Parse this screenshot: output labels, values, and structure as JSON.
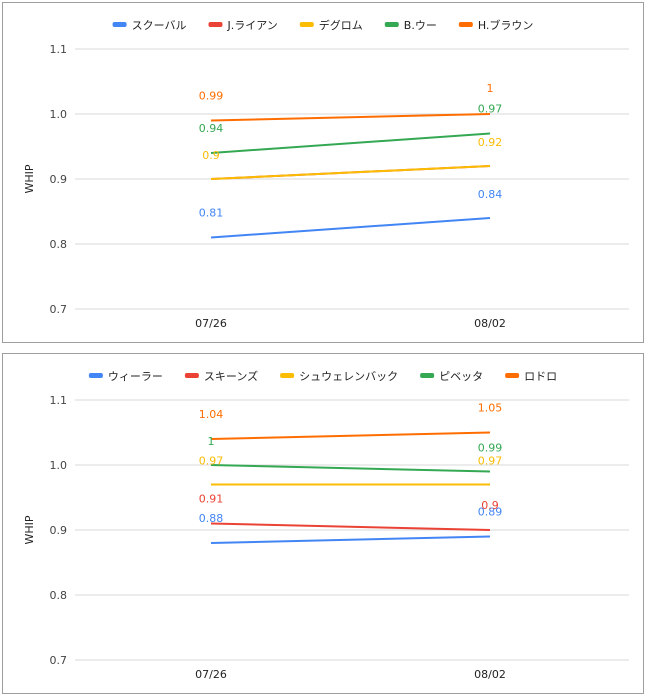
{
  "chart_data": [
    {
      "type": "line",
      "title": "",
      "xlabel": "",
      "ylabel": "WHIP",
      "categories": [
        "07/26",
        "08/02"
      ],
      "ylim": [
        0.7,
        1.1
      ],
      "yticks": [
        "0.7",
        "0.8",
        "0.9",
        "1.0",
        "1.1"
      ],
      "grid": true,
      "legend_position": "top",
      "series": [
        {
          "name": "スクーバル",
          "color": "#4285f4",
          "values": [
            0.81,
            0.84
          ],
          "labels": [
            "0.81",
            "0.84"
          ]
        },
        {
          "name": "J.ライアン",
          "color": "#ea4335",
          "values": [
            0.9,
            0.92
          ],
          "labels": [
            "",
            ""
          ]
        },
        {
          "name": "デグロム",
          "color": "#fbbc04",
          "values": [
            0.9,
            0.92
          ],
          "labels": [
            "0.9",
            "0.92"
          ]
        },
        {
          "name": "B.ウー",
          "color": "#34a853",
          "values": [
            0.94,
            0.97
          ],
          "labels": [
            "0.94",
            "0.97"
          ]
        },
        {
          "name": "H.ブラウン",
          "color": "#ff6d01",
          "values": [
            0.99,
            1.0
          ],
          "labels": [
            "0.99",
            "1"
          ]
        }
      ]
    },
    {
      "type": "line",
      "title": "",
      "xlabel": "",
      "ylabel": "WHIP",
      "categories": [
        "07/26",
        "08/02"
      ],
      "ylim": [
        0.7,
        1.1
      ],
      "yticks": [
        "0.7",
        "0.8",
        "0.9",
        "1.0",
        "1.1"
      ],
      "grid": true,
      "legend_position": "top",
      "series": [
        {
          "name": "ウィーラー",
          "color": "#4285f4",
          "values": [
            0.88,
            0.89
          ],
          "labels": [
            "0.88",
            "0.89"
          ]
        },
        {
          "name": "スキーンズ",
          "color": "#ea4335",
          "values": [
            0.91,
            0.9
          ],
          "labels": [
            "0.91",
            "0.9"
          ]
        },
        {
          "name": "シュウェレンバック",
          "color": "#fbbc04",
          "values": [
            0.97,
            0.97
          ],
          "labels": [
            "0.97",
            "0.97"
          ]
        },
        {
          "name": "ピベッタ",
          "color": "#34a853",
          "values": [
            1.0,
            0.99
          ],
          "labels": [
            "1",
            "0.99"
          ]
        },
        {
          "name": "ロドロ",
          "color": "#ff6d01",
          "values": [
            1.04,
            1.05
          ],
          "labels": [
            "1.04",
            "1.05"
          ]
        }
      ]
    }
  ]
}
